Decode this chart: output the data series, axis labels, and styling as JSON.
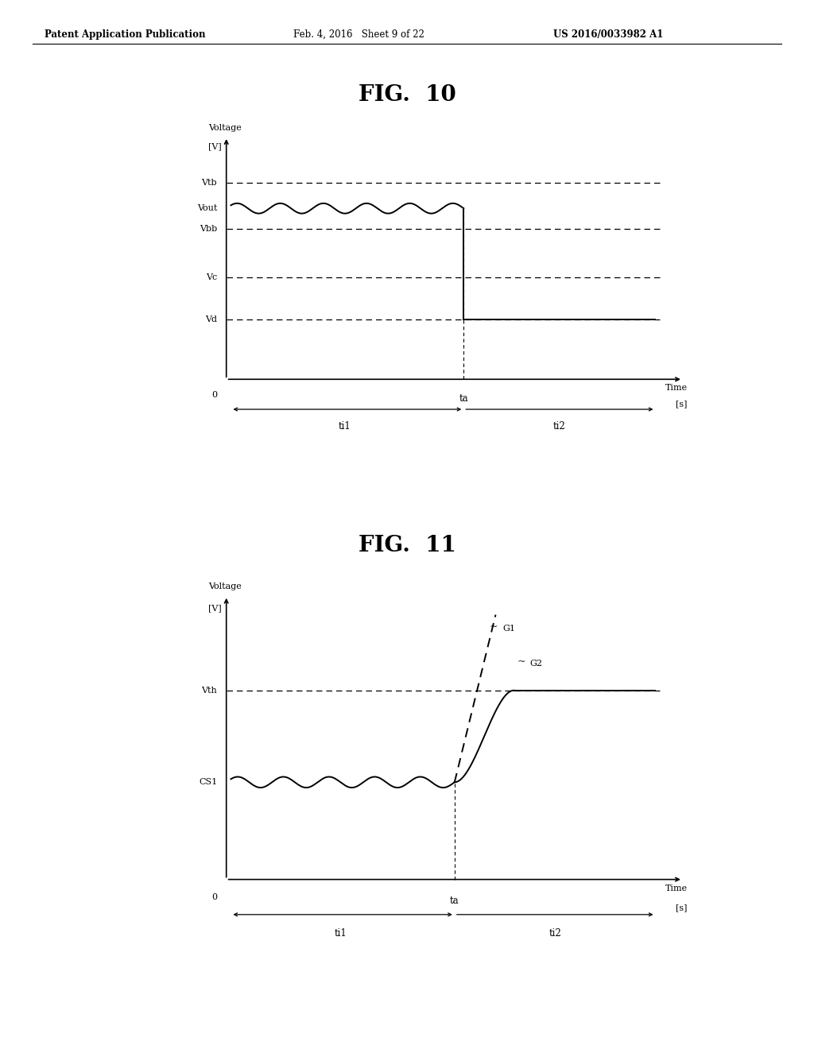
{
  "fig10_title": "FIG.  10",
  "fig11_title": "FIG.  11",
  "header_left": "Patent Application Publication",
  "header_mid": "Feb. 4, 2016   Sheet 9 of 22",
  "header_right": "US 2016/0033982 A1",
  "bg_color": "#ffffff",
  "line_color": "#000000",
  "fig10": {
    "Vtb": 0.85,
    "Vout": 0.74,
    "Vbb": 0.65,
    "Vc": 0.44,
    "Vd": 0.26,
    "ta": 0.52,
    "xmax": 0.9
  },
  "fig11": {
    "Vth": 0.7,
    "CS1": 0.36,
    "ta": 0.5,
    "xmax": 0.9
  }
}
